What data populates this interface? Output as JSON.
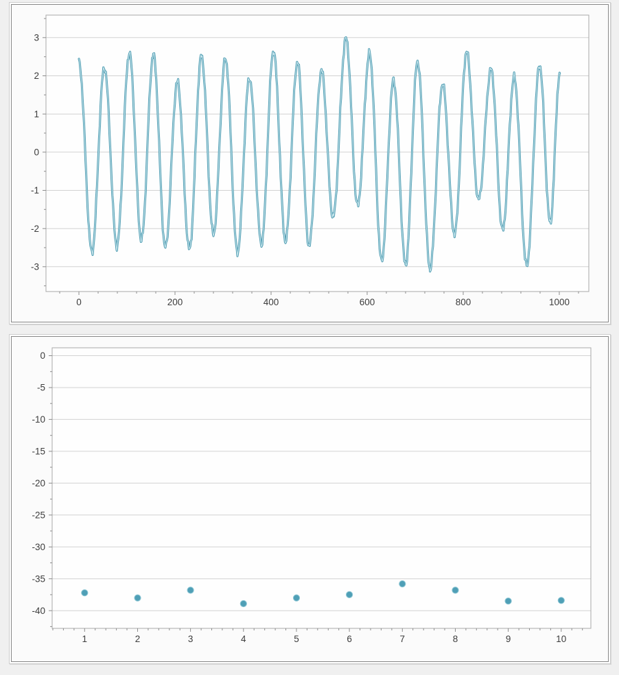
{
  "page": {
    "background": "#f0f0f0",
    "panel_background": "#fbfbfb",
    "panel_border_outer": "#cdcdcd",
    "panel_border_inner": "#868686"
  },
  "chart_data": [
    {
      "name": "waveform-line-chart",
      "type": "line",
      "title": "",
      "xlabel": "",
      "ylabel": "",
      "legend": "none",
      "grid": "horizontal-major",
      "line_color": "#4d9bb1",
      "line_highlight_color": "#c7e5ec",
      "grid_color": "#d2d2d2",
      "frame_color": "#a8a8a8",
      "tick_color": "#8c8c8c",
      "label_color": "#3c3c3c",
      "plot_background": "#fefefe",
      "x_axis": {
        "min": -68.6,
        "max": 1061.4,
        "major_ticks": [
          0,
          200,
          400,
          600,
          800,
          1000
        ],
        "minor_step": 40
      },
      "y_axis": {
        "min": -3.65,
        "max": 3.59,
        "major_ticks": [
          3,
          2,
          1,
          0,
          -1,
          -2,
          -3
        ],
        "minor_step": 0.5
      },
      "series_description": "noisy sinusoid, period ~50, x 0-1000",
      "series_extrema": [
        [
          0,
          2.35
        ],
        [
          27,
          -2.62
        ],
        [
          53,
          2.22
        ],
        [
          79,
          -2.45
        ],
        [
          105,
          2.6
        ],
        [
          130,
          -2.3
        ],
        [
          155,
          2.56
        ],
        [
          180,
          -2.5
        ],
        [
          205,
          1.85
        ],
        [
          230,
          -2.55
        ],
        [
          255,
          2.52
        ],
        [
          280,
          -2.15
        ],
        [
          305,
          2.46
        ],
        [
          330,
          -2.62
        ],
        [
          355,
          1.95
        ],
        [
          380,
          -2.4
        ],
        [
          405,
          2.66
        ],
        [
          430,
          -2.32
        ],
        [
          455,
          2.37
        ],
        [
          479,
          -2.45
        ],
        [
          505,
          2.14
        ],
        [
          529,
          -1.7
        ],
        [
          556,
          2.98
        ],
        [
          580,
          -1.4
        ],
        [
          605,
          2.58
        ],
        [
          630,
          -2.85
        ],
        [
          655,
          1.88
        ],
        [
          680,
          -2.95
        ],
        [
          705,
          2.38
        ],
        [
          731,
          -3.05
        ],
        [
          757,
          1.79
        ],
        [
          782,
          -2.15
        ],
        [
          807,
          2.63
        ],
        [
          832,
          -1.25
        ],
        [
          858,
          2.17
        ],
        [
          882,
          -2.05
        ],
        [
          906,
          1.96
        ],
        [
          932,
          -2.98
        ],
        [
          959,
          2.28
        ],
        [
          981,
          -1.86
        ],
        [
          1001,
          2.06
        ]
      ],
      "noise_terms": [
        [
          0.055,
          1.25,
          0.4
        ],
        [
          0.05,
          0.52,
          1.7
        ],
        [
          0.03,
          2.1,
          2.3
        ]
      ],
      "sample_step": 1.5,
      "line_width": 3,
      "highlight_width": 1.1
    },
    {
      "name": "scatter-chart",
      "type": "scatter",
      "title": "",
      "xlabel": "",
      "ylabel": "",
      "legend": "none",
      "grid": "horizontal-major",
      "marker_color": "#4f9fb6",
      "marker_edge_color": "#8cc6d4",
      "marker_radius": 4.6,
      "grid_color": "#d2d2d2",
      "frame_color": "#a8a8a8",
      "tick_color": "#8c8c8c",
      "label_color": "#3c3c3c",
      "plot_background": "#fefefe",
      "x_axis": {
        "min": 0.387,
        "max": 10.56,
        "major_ticks": [
          1,
          2,
          3,
          4,
          5,
          6,
          7,
          8,
          9,
          10
        ],
        "minor_step": 0.2
      },
      "y_axis": {
        "min": -42.78,
        "max": 1.24,
        "major_ticks": [
          0,
          -5,
          -10,
          -15,
          -20,
          -25,
          -30,
          -35,
          -40
        ],
        "minor_step": 2.5
      },
      "x": [
        1,
        2,
        3,
        4,
        5,
        6,
        7,
        8,
        9,
        10
      ],
      "y": [
        -37.2,
        -38.0,
        -36.8,
        -38.9,
        -38.0,
        -37.5,
        -35.8,
        -36.8,
        -38.5,
        -38.4
      ]
    }
  ]
}
